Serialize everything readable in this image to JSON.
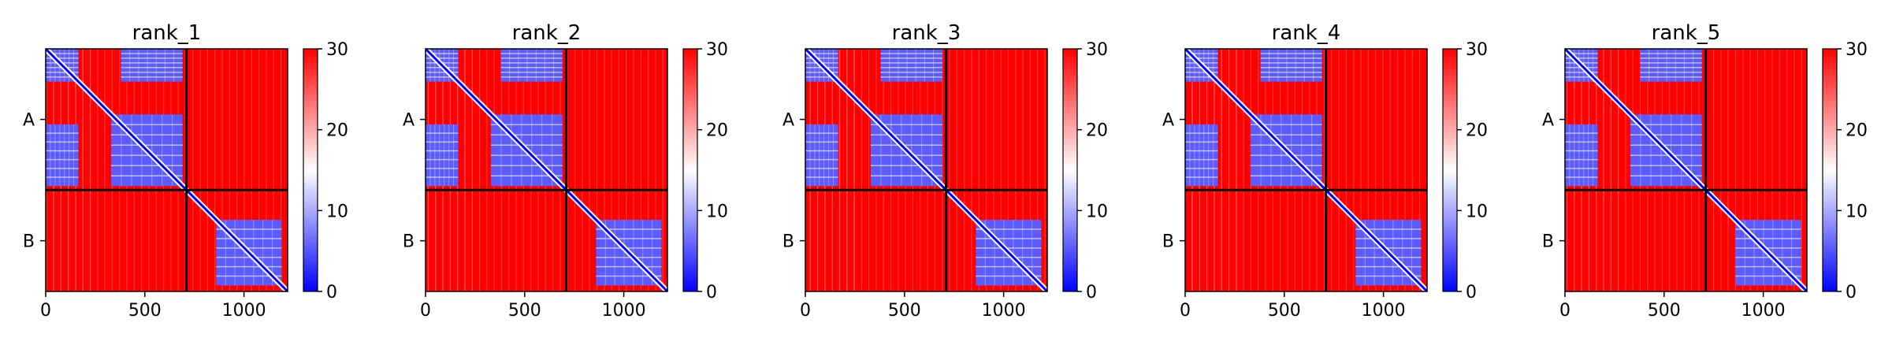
{
  "figure": {
    "background": "#ffffff",
    "colormap": {
      "low": "#0000ff",
      "mid": "#ffffff",
      "high": "#ff0000"
    }
  },
  "chart_data": [
    {
      "type": "heatmap",
      "title": "rank_1",
      "xlim": [
        0,
        1220
      ],
      "ylim": [
        1220,
        0
      ],
      "xticks": [
        0,
        500,
        1000
      ],
      "yticklabels": [
        "A",
        "B"
      ],
      "chain_boundary": 710,
      "colorbar": {
        "min": 0,
        "max": 30,
        "ticks": [
          0,
          10,
          20,
          30
        ]
      },
      "blue_blocks": [
        [
          0,
          165,
          0,
          165
        ],
        [
          330,
          690,
          330,
          690
        ],
        [
          0,
          165,
          380,
          690
        ],
        [
          380,
          690,
          0,
          165
        ],
        [
          860,
          1190,
          860,
          1190
        ]
      ]
    },
    {
      "type": "heatmap",
      "title": "rank_2",
      "xlim": [
        0,
        1220
      ],
      "ylim": [
        1220,
        0
      ],
      "xticks": [
        0,
        500,
        1000
      ],
      "yticklabels": [
        "A",
        "B"
      ],
      "chain_boundary": 710,
      "colorbar": {
        "min": 0,
        "max": 30,
        "ticks": [
          0,
          10,
          20,
          30
        ]
      },
      "blue_blocks": [
        [
          0,
          165,
          0,
          165
        ],
        [
          330,
          690,
          330,
          690
        ],
        [
          0,
          165,
          380,
          690
        ],
        [
          380,
          690,
          0,
          165
        ],
        [
          860,
          1190,
          860,
          1190
        ]
      ]
    },
    {
      "type": "heatmap",
      "title": "rank_3",
      "xlim": [
        0,
        1220
      ],
      "ylim": [
        1220,
        0
      ],
      "xticks": [
        0,
        500,
        1000
      ],
      "yticklabels": [
        "A",
        "B"
      ],
      "chain_boundary": 710,
      "colorbar": {
        "min": 0,
        "max": 30,
        "ticks": [
          0,
          10,
          20,
          30
        ]
      },
      "blue_blocks": [
        [
          0,
          165,
          0,
          165
        ],
        [
          330,
          690,
          330,
          690
        ],
        [
          0,
          165,
          380,
          690
        ],
        [
          380,
          690,
          0,
          165
        ],
        [
          860,
          1190,
          860,
          1190
        ]
      ]
    },
    {
      "type": "heatmap",
      "title": "rank_4",
      "xlim": [
        0,
        1220
      ],
      "ylim": [
        1220,
        0
      ],
      "xticks": [
        0,
        500,
        1000
      ],
      "yticklabels": [
        "A",
        "B"
      ],
      "chain_boundary": 710,
      "colorbar": {
        "min": 0,
        "max": 30,
        "ticks": [
          0,
          10,
          20,
          30
        ]
      },
      "blue_blocks": [
        [
          0,
          165,
          0,
          165
        ],
        [
          330,
          690,
          330,
          690
        ],
        [
          0,
          165,
          380,
          690
        ],
        [
          380,
          690,
          0,
          165
        ],
        [
          860,
          1190,
          860,
          1190
        ]
      ]
    },
    {
      "type": "heatmap",
      "title": "rank_5",
      "xlim": [
        0,
        1220
      ],
      "ylim": [
        1220,
        0
      ],
      "xticks": [
        0,
        500,
        1000
      ],
      "yticklabels": [
        "A",
        "B"
      ],
      "chain_boundary": 710,
      "colorbar": {
        "min": 0,
        "max": 30,
        "ticks": [
          0,
          10,
          20,
          30
        ]
      },
      "blue_blocks": [
        [
          0,
          165,
          0,
          165
        ],
        [
          330,
          690,
          330,
          690
        ],
        [
          0,
          165,
          380,
          690
        ],
        [
          380,
          690,
          0,
          165
        ],
        [
          860,
          1190,
          860,
          1190
        ]
      ]
    }
  ]
}
